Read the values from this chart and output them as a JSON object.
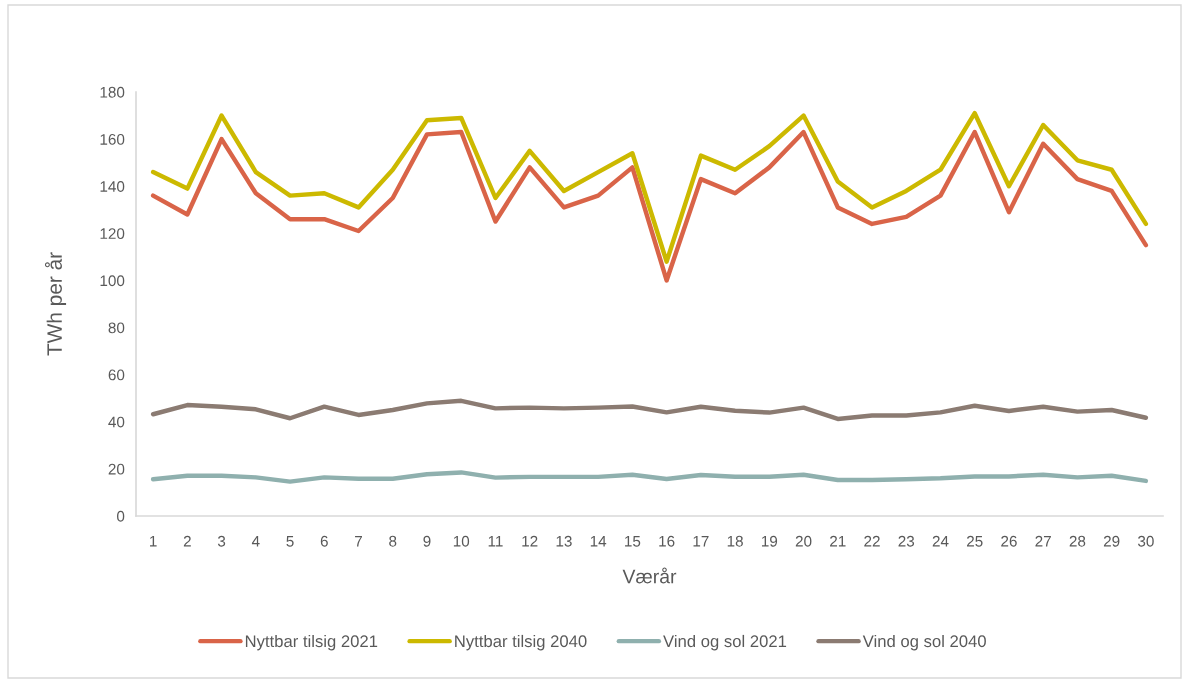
{
  "chart_data": {
    "type": "line",
    "xlabel": "Værår",
    "ylabel": "TWh per år",
    "categories": [
      "1",
      "2",
      "3",
      "4",
      "5",
      "6",
      "7",
      "8",
      "9",
      "10",
      "11",
      "12",
      "13",
      "14",
      "15",
      "16",
      "17",
      "18",
      "19",
      "20",
      "21",
      "22",
      "23",
      "24",
      "25",
      "26",
      "27",
      "28",
      "29",
      "30"
    ],
    "series": [
      {
        "name": "Nyttbar tilsig 2021",
        "color": "#d96448",
        "values": [
          136,
          128,
          160,
          137,
          126,
          126,
          121,
          135,
          162,
          163,
          125,
          148,
          131,
          136,
          148,
          100,
          143,
          137,
          148,
          163,
          131,
          124,
          127,
          136,
          163,
          129,
          158,
          143,
          138,
          115
        ]
      },
      {
        "name": "Nyttbar tilsig 2040",
        "color": "#ccb900",
        "values": [
          146,
          139,
          170,
          146,
          136,
          137,
          131,
          147,
          168,
          169,
          135,
          155,
          138,
          146,
          154,
          108,
          153,
          147,
          157,
          170,
          142,
          131,
          138,
          147,
          171,
          140,
          166,
          151,
          147,
          124
        ]
      },
      {
        "name": "Vind og sol 2021",
        "color": "#8fb0ae",
        "values": [
          15.6,
          17.1,
          17.1,
          16.4,
          14.6,
          16.4,
          15.8,
          15.8,
          17.7,
          18.5,
          16.3,
          16.6,
          16.6,
          16.6,
          17.5,
          15.7,
          17.4,
          16.7,
          16.7,
          17.5,
          15.3,
          15.3,
          15.6,
          16,
          16.8,
          16.8,
          17.5,
          16.4,
          17.1,
          14.9
        ]
      },
      {
        "name": "Vind og sol 2040",
        "color": "#8b7b72",
        "values": [
          43.2,
          47.1,
          46.4,
          45.3,
          41.5,
          46.4,
          42.9,
          45,
          47.8,
          48.9,
          45.7,
          46,
          45.7,
          46,
          46.5,
          44,
          46.4,
          44.7,
          43.9,
          46,
          41.2,
          42.7,
          42.7,
          44,
          46.8,
          44.6,
          46.4,
          44.3,
          45,
          41.7
        ]
      }
    ],
    "ylim": [
      0,
      180
    ],
    "yticks": [
      0,
      20,
      40,
      60,
      80,
      100,
      120,
      140,
      160,
      180
    ],
    "legend": "bottom",
    "marker": "none",
    "line_style": "solid"
  }
}
